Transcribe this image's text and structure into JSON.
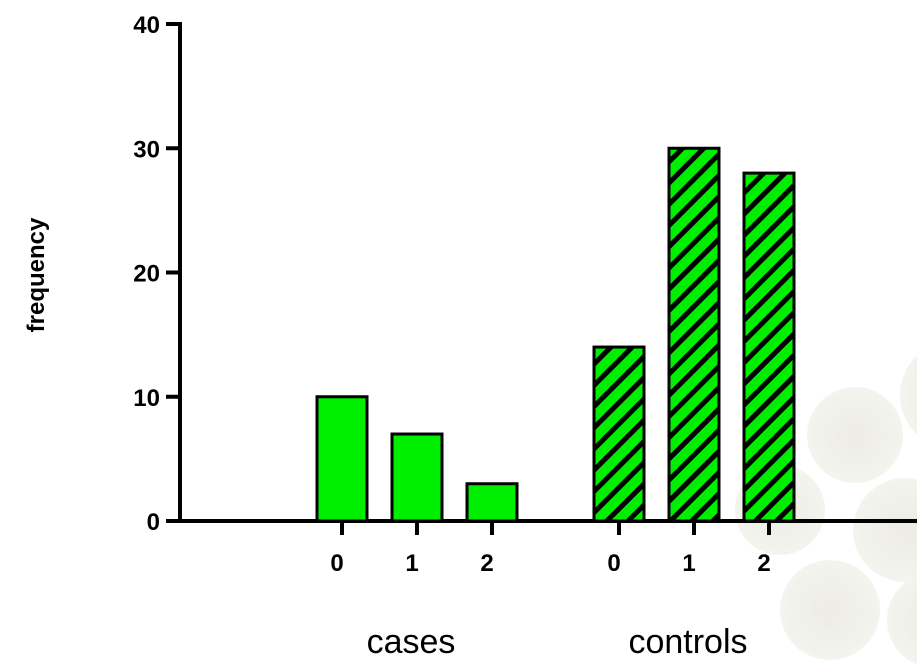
{
  "chart_data": {
    "type": "bar",
    "ylabel": "frequency",
    "xlabel": "",
    "ylim": [
      0,
      40
    ],
    "yticks": [
      0,
      10,
      20,
      30,
      40
    ],
    "grid": false,
    "colors": {
      "bar_fill": "#00ee00",
      "stroke": "#000000",
      "hatch": "#000000"
    },
    "groups": [
      {
        "name": "cases",
        "categories": [
          "0",
          "1",
          "2"
        ],
        "values": [
          10,
          7,
          3
        ],
        "hatched": false
      },
      {
        "name": "controls",
        "categories": [
          "0",
          "1",
          "2"
        ],
        "values": [
          14,
          30,
          28
        ],
        "hatched": true
      }
    ]
  }
}
